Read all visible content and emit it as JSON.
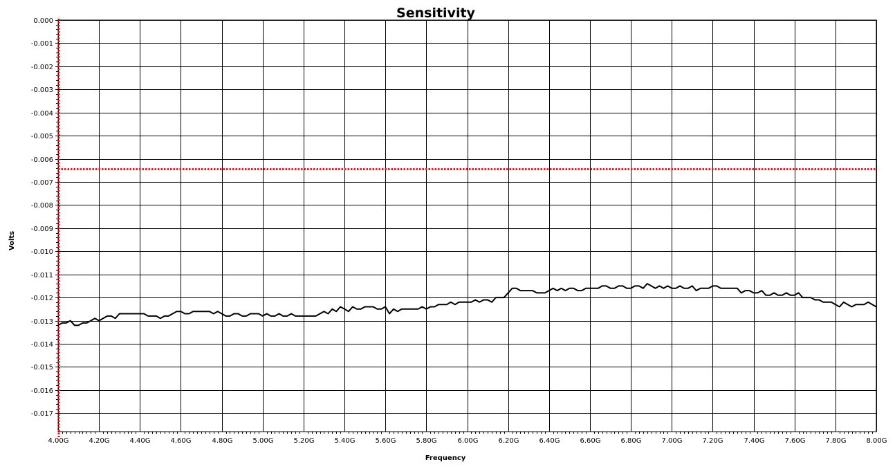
{
  "chart_data": {
    "type": "line",
    "title": "Sensitivity",
    "xlabel": "Frequency",
    "ylabel": "Volts",
    "xlim": [
      4.0,
      8.0
    ],
    "ylim": [
      -0.0178,
      0.0
    ],
    "grid": true,
    "x_ticks": [
      {
        "value": 4.0,
        "label": "4.00G"
      },
      {
        "value": 4.2,
        "label": "4.20G"
      },
      {
        "value": 4.4,
        "label": "4.40G"
      },
      {
        "value": 4.6,
        "label": "4.60G"
      },
      {
        "value": 4.8,
        "label": "4.80G"
      },
      {
        "value": 5.0,
        "label": "5.00G"
      },
      {
        "value": 5.2,
        "label": "5.20G"
      },
      {
        "value": 5.4,
        "label": "5.40G"
      },
      {
        "value": 5.6,
        "label": "5.60G"
      },
      {
        "value": 5.8,
        "label": "5.80G"
      },
      {
        "value": 6.0,
        "label": "6.00G"
      },
      {
        "value": 6.2,
        "label": "6.20G"
      },
      {
        "value": 6.4,
        "label": "6.40G"
      },
      {
        "value": 6.6,
        "label": "6.60G"
      },
      {
        "value": 6.8,
        "label": "6.80G"
      },
      {
        "value": 7.0,
        "label": "7.00G"
      },
      {
        "value": 7.2,
        "label": "7.20G"
      },
      {
        "value": 7.4,
        "label": "7.40G"
      },
      {
        "value": 7.6,
        "label": "7.60G"
      },
      {
        "value": 7.8,
        "label": "7.80G"
      },
      {
        "value": 8.0,
        "label": "8.00G"
      }
    ],
    "y_ticks": [
      {
        "value": 0.0,
        "label": "0.000"
      },
      {
        "value": -0.001,
        "label": "-0.001"
      },
      {
        "value": -0.002,
        "label": "-0.002"
      },
      {
        "value": -0.003,
        "label": "-0.003"
      },
      {
        "value": -0.004,
        "label": "-0.004"
      },
      {
        "value": -0.005,
        "label": "-0.005"
      },
      {
        "value": -0.006,
        "label": "-0.006"
      },
      {
        "value": -0.007,
        "label": "-0.007"
      },
      {
        "value": -0.008,
        "label": "-0.008"
      },
      {
        "value": -0.009,
        "label": "-0.009"
      },
      {
        "value": -0.01,
        "label": "-0.010"
      },
      {
        "value": -0.011,
        "label": "-0.011"
      },
      {
        "value": -0.012,
        "label": "-0.012"
      },
      {
        "value": -0.013,
        "label": "-0.013"
      },
      {
        "value": -0.014,
        "label": "-0.014"
      },
      {
        "value": -0.015,
        "label": "-0.015"
      },
      {
        "value": -0.016,
        "label": "-0.016"
      },
      {
        "value": -0.017,
        "label": "-0.017"
      }
    ],
    "markers": {
      "vertical_x": 4.0,
      "horizontal_y": -0.00645,
      "color": "#e8111b"
    },
    "series": [
      {
        "color": "#000000",
        "x": [
          4.0,
          4.02,
          4.04,
          4.06,
          4.08,
          4.1,
          4.12,
          4.14,
          4.16,
          4.18,
          4.2,
          4.22,
          4.24,
          4.26,
          4.28,
          4.3,
          4.32,
          4.34,
          4.36,
          4.38,
          4.4,
          4.42,
          4.44,
          4.46,
          4.48,
          4.5,
          4.52,
          4.54,
          4.56,
          4.58,
          4.6,
          4.62,
          4.64,
          4.66,
          4.68,
          4.7,
          4.72,
          4.74,
          4.76,
          4.78,
          4.8,
          4.82,
          4.84,
          4.86,
          4.88,
          4.9,
          4.92,
          4.94,
          4.96,
          4.98,
          5.0,
          5.02,
          5.04,
          5.06,
          5.08,
          5.1,
          5.12,
          5.14,
          5.16,
          5.18,
          5.2,
          5.22,
          5.24,
          5.26,
          5.28,
          5.3,
          5.32,
          5.34,
          5.36,
          5.38,
          5.4,
          5.42,
          5.44,
          5.46,
          5.48,
          5.5,
          5.52,
          5.54,
          5.56,
          5.58,
          5.6,
          5.62,
          5.64,
          5.66,
          5.68,
          5.7,
          5.72,
          5.74,
          5.76,
          5.78,
          5.8,
          5.82,
          5.84,
          5.86,
          5.88,
          5.9,
          5.92,
          5.94,
          5.96,
          5.98,
          6.0,
          6.02,
          6.04,
          6.06,
          6.08,
          6.1,
          6.12,
          6.14,
          6.16,
          6.18,
          6.2,
          6.22,
          6.24,
          6.26,
          6.28,
          6.3,
          6.32,
          6.34,
          6.36,
          6.38,
          6.4,
          6.42,
          6.44,
          6.46,
          6.48,
          6.5,
          6.52,
          6.54,
          6.56,
          6.58,
          6.6,
          6.62,
          6.64,
          6.66,
          6.68,
          6.7,
          6.72,
          6.74,
          6.76,
          6.78,
          6.8,
          6.82,
          6.84,
          6.86,
          6.88,
          6.9,
          6.92,
          6.94,
          6.96,
          6.98,
          7.0,
          7.02,
          7.04,
          7.06,
          7.08,
          7.1,
          7.12,
          7.14,
          7.16,
          7.18,
          7.2,
          7.22,
          7.24,
          7.26,
          7.28,
          7.3,
          7.32,
          7.34,
          7.36,
          7.38,
          7.4,
          7.42,
          7.44,
          7.46,
          7.48,
          7.5,
          7.52,
          7.54,
          7.56,
          7.58,
          7.6,
          7.62,
          7.64,
          7.66,
          7.68,
          7.7,
          7.72,
          7.74,
          7.76,
          7.78,
          7.8,
          7.82,
          7.84,
          7.86,
          7.88,
          7.9,
          7.92,
          7.94,
          7.96,
          7.98,
          8.0
        ],
        "y": [
          -0.0132,
          -0.0131,
          -0.0131,
          -0.013,
          -0.0132,
          -0.0132,
          -0.0131,
          -0.0131,
          -0.013,
          -0.0129,
          -0.013,
          -0.0129,
          -0.0128,
          -0.0128,
          -0.0129,
          -0.0127,
          -0.0127,
          -0.0127,
          -0.0127,
          -0.0127,
          -0.0127,
          -0.0127,
          -0.0128,
          -0.0128,
          -0.0128,
          -0.0129,
          -0.0128,
          -0.0128,
          -0.0127,
          -0.0126,
          -0.0126,
          -0.0127,
          -0.0127,
          -0.0126,
          -0.0126,
          -0.0126,
          -0.0126,
          -0.0126,
          -0.0127,
          -0.0126,
          -0.0127,
          -0.0128,
          -0.0128,
          -0.0127,
          -0.0127,
          -0.0128,
          -0.0128,
          -0.0127,
          -0.0127,
          -0.0127,
          -0.0128,
          -0.0127,
          -0.0128,
          -0.0128,
          -0.0127,
          -0.0128,
          -0.0128,
          -0.0127,
          -0.0128,
          -0.0128,
          -0.0128,
          -0.0128,
          -0.0128,
          -0.0128,
          -0.0127,
          -0.0126,
          -0.0127,
          -0.0125,
          -0.0126,
          -0.0124,
          -0.0125,
          -0.0126,
          -0.0124,
          -0.0125,
          -0.0125,
          -0.0124,
          -0.0124,
          -0.0124,
          -0.0125,
          -0.0125,
          -0.0124,
          -0.0127,
          -0.0125,
          -0.0126,
          -0.0125,
          -0.0125,
          -0.0125,
          -0.0125,
          -0.0125,
          -0.0124,
          -0.0125,
          -0.0124,
          -0.0124,
          -0.0123,
          -0.0123,
          -0.0123,
          -0.0122,
          -0.0123,
          -0.0122,
          -0.0122,
          -0.0122,
          -0.0122,
          -0.0121,
          -0.0122,
          -0.0121,
          -0.0121,
          -0.0122,
          -0.012,
          -0.012,
          -0.012,
          -0.0118,
          -0.0116,
          -0.0116,
          -0.0117,
          -0.0117,
          -0.0117,
          -0.0117,
          -0.0118,
          -0.0118,
          -0.0118,
          -0.0117,
          -0.0116,
          -0.0117,
          -0.0116,
          -0.0117,
          -0.0116,
          -0.0116,
          -0.0117,
          -0.0117,
          -0.0116,
          -0.0116,
          -0.0116,
          -0.0116,
          -0.0115,
          -0.0115,
          -0.0116,
          -0.0116,
          -0.0115,
          -0.0115,
          -0.0116,
          -0.0116,
          -0.0115,
          -0.0115,
          -0.0116,
          -0.0114,
          -0.0115,
          -0.0116,
          -0.0115,
          -0.0116,
          -0.0115,
          -0.0116,
          -0.0116,
          -0.0115,
          -0.0116,
          -0.0116,
          -0.0115,
          -0.0117,
          -0.0116,
          -0.0116,
          -0.0116,
          -0.0115,
          -0.0115,
          -0.0116,
          -0.0116,
          -0.0116,
          -0.0116,
          -0.0116,
          -0.0118,
          -0.0117,
          -0.0117,
          -0.0118,
          -0.0118,
          -0.0117,
          -0.0119,
          -0.0119,
          -0.0118,
          -0.0119,
          -0.0119,
          -0.0118,
          -0.0119,
          -0.0119,
          -0.0118,
          -0.012,
          -0.012,
          -0.012,
          -0.0121,
          -0.0121,
          -0.0122,
          -0.0122,
          -0.0122,
          -0.0123,
          -0.0124,
          -0.0122,
          -0.0123,
          -0.0124,
          -0.0123,
          -0.0123,
          -0.0123,
          -0.0122,
          -0.0123,
          -0.0124
        ]
      }
    ]
  }
}
